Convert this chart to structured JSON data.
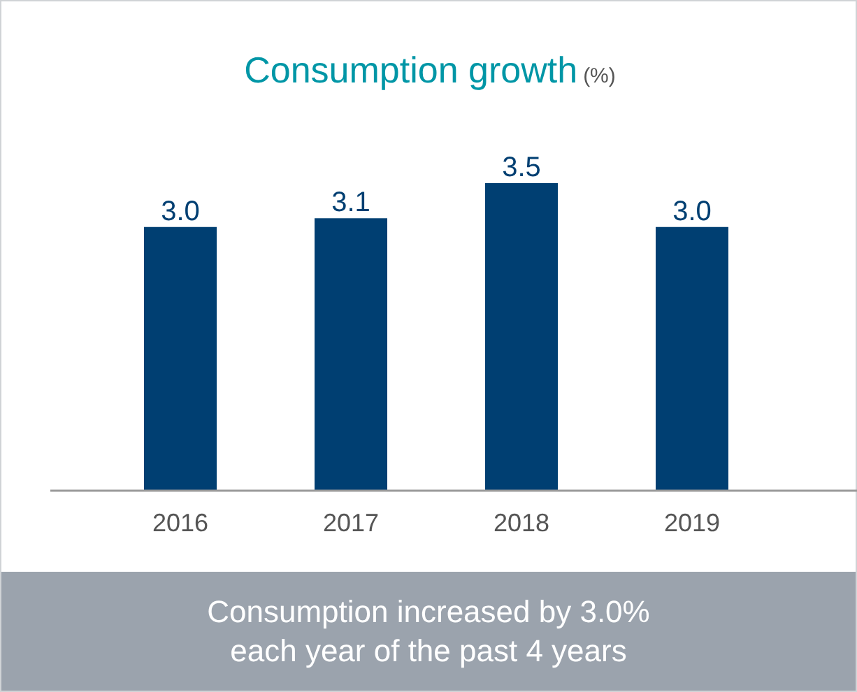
{
  "chart_data": {
    "type": "bar",
    "title": "Consumption growth",
    "subtitle": "(%)",
    "categories": [
      "2016",
      "2017",
      "2018",
      "2019"
    ],
    "values": [
      3.0,
      3.1,
      3.5,
      3.0
    ],
    "color": "#003f72",
    "value_labels": [
      "3.0",
      "3.1",
      "3.5",
      "3.0"
    ],
    "tick_labels": "x",
    "annotations": [
      "Consumption increased by 3.0% each year of the past 4 years"
    ]
  }
}
